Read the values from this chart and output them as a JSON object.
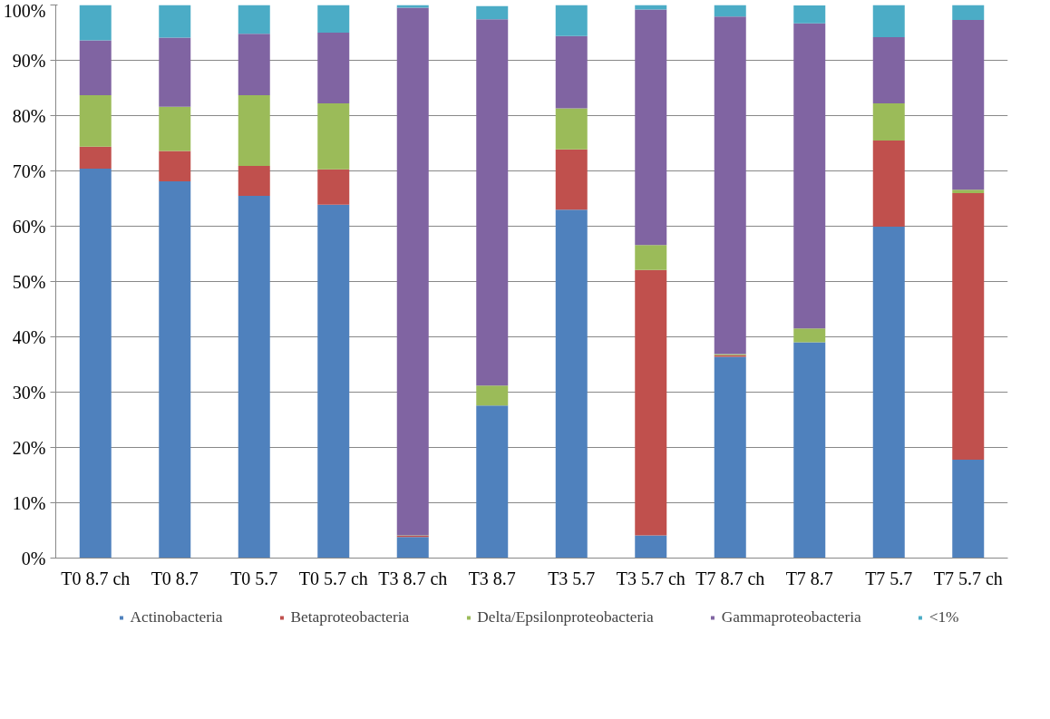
{
  "chart_data": {
    "type": "bar",
    "stacked": true,
    "categories": [
      "T0 8.7 ch",
      "T0 8.7",
      "T0 5.7",
      "T0 5.7 ch",
      "T3 8.7 ch",
      "T3 8.7",
      "T3 5.7",
      "T3 5.7 ch",
      "T7 8.7 ch",
      "T7 8.7",
      "T7 5.7",
      "T7 5.7 ch"
    ],
    "series": [
      {
        "name": "Actinobacteria",
        "color": "#4f81bd",
        "values": [
          70.4,
          68.1,
          65.5,
          63.9,
          3.8,
          27.6,
          63.0,
          4.1,
          36.4,
          39.0,
          59.9,
          17.8
        ]
      },
      {
        "name": "Betaproteobacteria",
        "color": "#c0504d",
        "values": [
          4.0,
          5.5,
          5.4,
          6.4,
          0.2,
          null,
          10.9,
          48.0,
          0.3,
          null,
          15.6,
          48.2
        ]
      },
      {
        "name": "Delta/Epsilonproteobacteria",
        "color": "#9bbb59",
        "values": [
          9.3,
          8.0,
          12.8,
          11.9,
          0.1,
          3.6,
          7.4,
          4.5,
          0.2,
          2.5,
          6.7,
          0.6
        ]
      },
      {
        "name": "Gammaproteobacteria",
        "color": "#8064a2",
        "values": [
          9.9,
          12.5,
          11.1,
          12.8,
          95.4,
          66.2,
          13.1,
          42.6,
          61.0,
          55.2,
          12.0,
          30.7
        ]
      },
      {
        "name": "<1%",
        "color": "#4bacc6",
        "values": [
          6.4,
          5.9,
          5.2,
          5.0,
          0.5,
          2.4,
          5.6,
          0.8,
          2.1,
          3.2,
          5.8,
          2.7
        ]
      }
    ],
    "ylim": [
      0,
      100
    ],
    "yticks": [
      {
        "value": 0,
        "label": "0%"
      },
      {
        "value": 10,
        "label": "10%"
      },
      {
        "value": 20,
        "label": "20%"
      },
      {
        "value": 30,
        "label": "30%"
      },
      {
        "value": 40,
        "label": "40%"
      },
      {
        "value": 50,
        "label": "50%"
      },
      {
        "value": 60,
        "label": "60%"
      },
      {
        "value": 70,
        "label": "70%"
      },
      {
        "value": 80,
        "label": "80%"
      },
      {
        "value": 90,
        "label": "90%"
      },
      {
        "value": 100,
        "label": "100%"
      }
    ],
    "grid": "y",
    "legend": "bottom"
  }
}
